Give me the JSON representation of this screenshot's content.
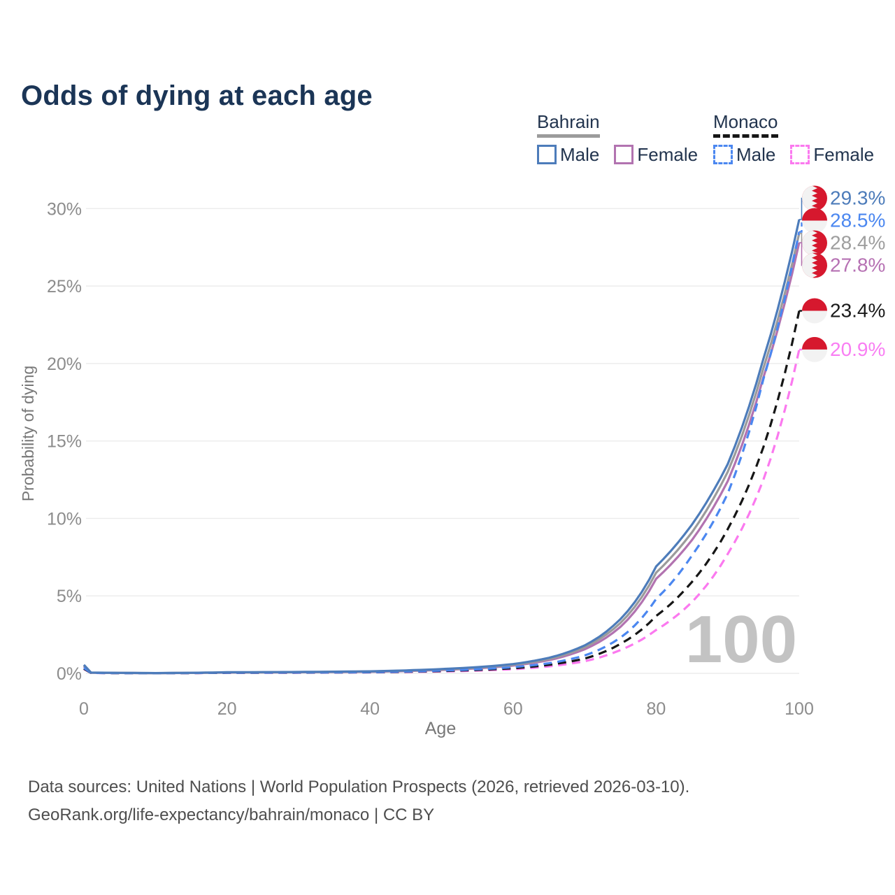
{
  "title": "Odds of dying at each age",
  "legend": {
    "groups": [
      {
        "name": "Bahrain",
        "line_style": "solid",
        "line_color": "#9b9b9b",
        "items": [
          {
            "label": "Male",
            "color": "#4d7cba",
            "dash": false
          },
          {
            "label": "Female",
            "color": "#b273b0",
            "dash": false
          }
        ]
      },
      {
        "name": "Monaco",
        "line_style": "dashed",
        "line_color": "#161616",
        "items": [
          {
            "label": "Male",
            "color": "#4b87f0",
            "dash": true
          },
          {
            "label": "Female",
            "color": "#fb79ef",
            "dash": true
          }
        ]
      }
    ]
  },
  "chart_data": {
    "type": "line",
    "title": "Odds of dying at each age",
    "xlabel": "Age",
    "ylabel": "Probability of dying",
    "xlim": [
      0,
      100
    ],
    "ylim_pct": [
      0,
      31
    ],
    "x_ticks": [
      0,
      20,
      40,
      60,
      80,
      100
    ],
    "y_ticks": [
      "0%",
      "5%",
      "10%",
      "15%",
      "20%",
      "25%",
      "30%"
    ],
    "y_tick_step_pct": 5,
    "grid": "horizontal-only",
    "legend_position": "top-right",
    "watermark": "100",
    "x": [
      0,
      1,
      10,
      20,
      30,
      40,
      50,
      55,
      60,
      65,
      70,
      75,
      80,
      85,
      90,
      95,
      100
    ],
    "series": [
      {
        "name": "Bahrain Male",
        "color": "#4d7cba",
        "dash": false,
        "flag": "bahrain",
        "end_label": "29.3%",
        "label_color": "#4d7cba",
        "values": [
          0.55,
          0.05,
          0.02,
          0.07,
          0.09,
          0.13,
          0.28,
          0.4,
          0.6,
          1.0,
          1.8,
          3.5,
          6.9,
          9.6,
          13.5,
          20.3,
          29.3
        ]
      },
      {
        "name": "Monaco Male",
        "color": "#4b87f0",
        "dash": true,
        "flag": "monaco",
        "end_label": "28.5%",
        "label_color": "#4b87f0",
        "values": [
          0.35,
          0.03,
          0.012,
          0.045,
          0.055,
          0.08,
          0.18,
          0.26,
          0.4,
          0.65,
          1.15,
          2.3,
          4.8,
          7.6,
          11.6,
          19.0,
          28.5
        ]
      },
      {
        "name": "Bahrain",
        "color": "#9b9b9b",
        "dash": false,
        "flag": "bahrain",
        "end_label": "28.4%",
        "label_color": "#9e9e9e",
        "values": [
          0.5,
          0.045,
          0.018,
          0.06,
          0.08,
          0.12,
          0.25,
          0.36,
          0.55,
          0.92,
          1.68,
          3.25,
          6.5,
          9.1,
          13.0,
          19.7,
          28.4
        ]
      },
      {
        "name": "Bahrain Female",
        "color": "#b273b0",
        "dash": false,
        "flag": "bahrain",
        "end_label": "27.8%",
        "label_color": "#b671b3",
        "values": [
          0.45,
          0.04,
          0.015,
          0.05,
          0.07,
          0.1,
          0.22,
          0.32,
          0.5,
          0.85,
          1.55,
          3.0,
          6.1,
          8.6,
          12.4,
          19.1,
          27.8
        ]
      },
      {
        "name": "Monaco",
        "color": "#161616",
        "dash": true,
        "flag": "monaco",
        "end_label": "23.4%",
        "label_color": "#1a1a1a",
        "values": [
          0.3,
          0.028,
          0.01,
          0.038,
          0.048,
          0.072,
          0.15,
          0.22,
          0.33,
          0.55,
          0.95,
          1.9,
          3.7,
          5.9,
          9.3,
          14.6,
          23.4
        ]
      },
      {
        "name": "Monaco Female",
        "color": "#fb79ef",
        "dash": true,
        "flag": "monaco",
        "end_label": "20.9%",
        "label_color": "#f97ef3",
        "values": [
          0.28,
          0.025,
          0.009,
          0.032,
          0.042,
          0.062,
          0.12,
          0.18,
          0.27,
          0.45,
          0.78,
          1.5,
          2.8,
          4.6,
          7.7,
          12.5,
          20.9
        ]
      }
    ],
    "flag_colors": {
      "red": "#d6182e",
      "white": "#f2f2f2"
    }
  },
  "footer": {
    "line1": "Data sources: United Nations | World Population Prospects (2026, retrieved 2026-03-10).",
    "line2": "GeoRank.org/life-expectancy/bahrain/monaco | CC BY"
  }
}
